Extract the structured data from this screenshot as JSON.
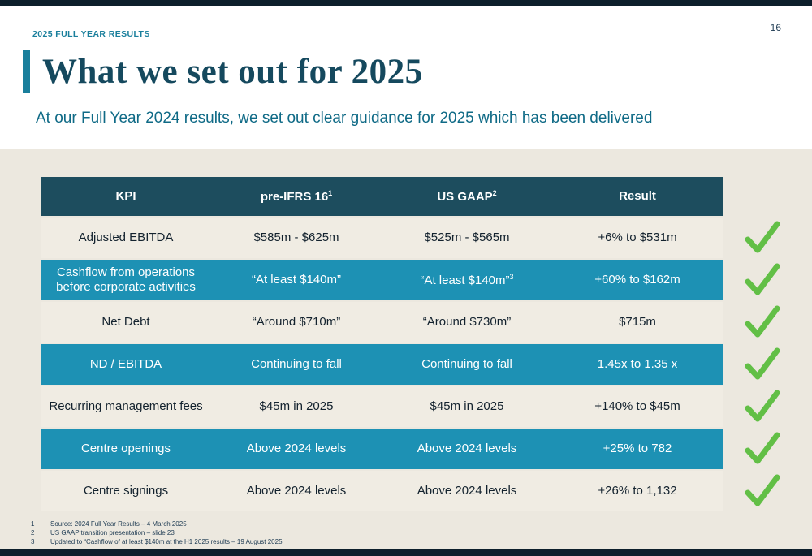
{
  "slide": {
    "eyebrow": "2025 FULL YEAR RESULTS",
    "page_number": "16",
    "title": "What we set out for 2025",
    "subtitle": "At our Full Year 2024 results, we set out clear guidance for 2025 which has been delivered"
  },
  "colors": {
    "header_bg": "#1d4d5e",
    "teal_row_bg": "#1d91b4",
    "cream_row_bg": "#f0ece3",
    "accent_teal": "#1a7f9c",
    "check_green": "#62bf46"
  },
  "table": {
    "headers": [
      {
        "label": "KPI",
        "sup": ""
      },
      {
        "label": "pre-IFRS 16",
        "sup": "1"
      },
      {
        "label": "US GAAP",
        "sup": "2"
      },
      {
        "label": "Result",
        "sup": ""
      }
    ],
    "rows": [
      {
        "kpi": "Adjusted EBITDA",
        "pre_ifrs": "$585m - $625m",
        "us_gaap": "$525m - $565m",
        "us_gaap_sup": "",
        "result": "+6% to $531m",
        "highlight": false
      },
      {
        "kpi": "Cashflow from operations before corporate activities",
        "pre_ifrs": "“At least $140m”",
        "us_gaap": "“At least $140m”",
        "us_gaap_sup": "3",
        "result": "+60% to $162m",
        "highlight": true
      },
      {
        "kpi": "Net Debt",
        "pre_ifrs": "“Around $710m”",
        "us_gaap": "“Around $730m”",
        "us_gaap_sup": "",
        "result": "$715m",
        "highlight": false
      },
      {
        "kpi": "ND / EBITDA",
        "pre_ifrs": "Continuing to fall",
        "us_gaap": "Continuing to fall",
        "us_gaap_sup": "",
        "result": "1.45x to 1.35 x",
        "highlight": true
      },
      {
        "kpi": "Recurring management fees",
        "pre_ifrs": "$45m in 2025",
        "us_gaap": "$45m in 2025",
        "us_gaap_sup": "",
        "result": "+140% to $45m",
        "highlight": false
      },
      {
        "kpi": "Centre openings",
        "pre_ifrs": "Above 2024 levels",
        "us_gaap": "Above 2024 levels",
        "us_gaap_sup": "",
        "result": "+25% to 782",
        "highlight": true
      },
      {
        "kpi": "Centre signings",
        "pre_ifrs": "Above 2024 levels",
        "us_gaap": "Above 2024 levels",
        "us_gaap_sup": "",
        "result": "+26% to 1,132",
        "highlight": false
      }
    ]
  },
  "footnotes": [
    {
      "num": "1",
      "text": "Source: 2024 Full Year Results – 4 March 2025"
    },
    {
      "num": "2",
      "text": "US GAAP transition presentation – slide 23"
    },
    {
      "num": "3",
      "text": "Updated to “Cashflow of at least $140m at the H1 2025 results – 19 August 2025"
    }
  ]
}
